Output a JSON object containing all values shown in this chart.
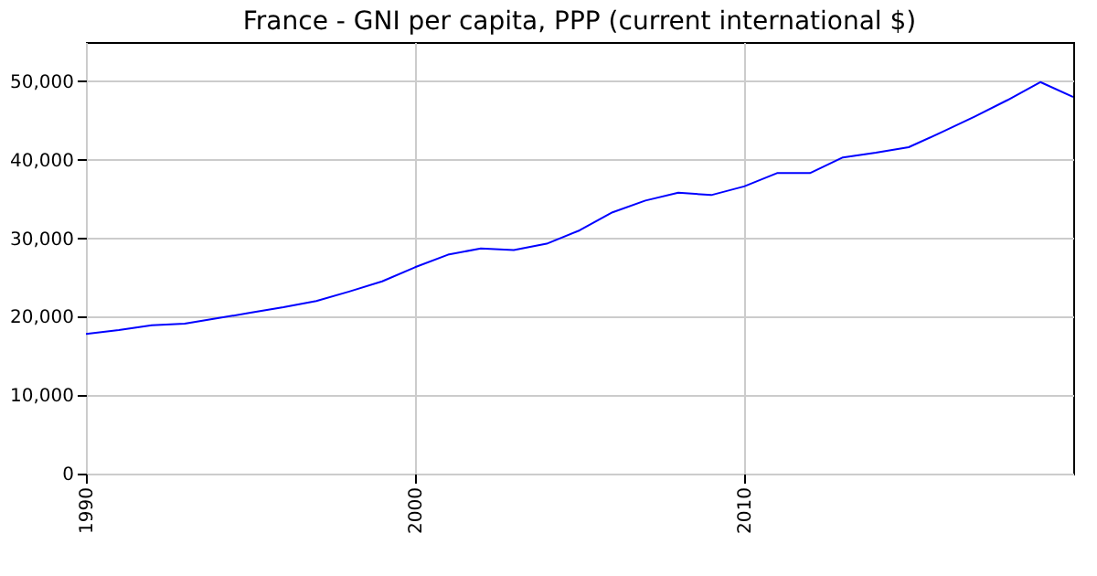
{
  "chart_data": {
    "type": "line",
    "title": "France - GNI per capita, PPP (current international $)",
    "x": [
      1990,
      1991,
      1992,
      1993,
      1994,
      1995,
      1996,
      1997,
      1998,
      1999,
      2000,
      2001,
      2002,
      2003,
      2004,
      2005,
      2006,
      2007,
      2008,
      2009,
      2010,
      2011,
      2012,
      2013,
      2014,
      2015,
      2016,
      2017,
      2018,
      2019,
      2020
    ],
    "series": [
      {
        "color": "#0000ff",
        "values": [
          17800,
          18300,
          18900,
          19100,
          19800,
          20500,
          21200,
          22000,
          23200,
          24500,
          26300,
          27900,
          28700,
          28500,
          29300,
          31000,
          33300,
          34800,
          35800,
          35500,
          36600,
          38300,
          38300,
          40300,
          40900,
          41600,
          43500,
          45500,
          47600,
          49900,
          48000
        ]
      }
    ],
    "xlim": [
      1990,
      2020
    ],
    "xticks": [
      1990,
      2000,
      2010
    ],
    "ylim": [
      0,
      55000
    ],
    "yticks": [
      {
        "value": 0,
        "label": "0"
      },
      {
        "value": 10000,
        "label": "10,000"
      },
      {
        "value": 20000,
        "label": "20,000"
      },
      {
        "value": 30000,
        "label": "30,000"
      },
      {
        "value": 40000,
        "label": "40,000"
      },
      {
        "value": 50000,
        "label": "50,000"
      }
    ],
    "grid": true,
    "legend": false,
    "marker": "none",
    "line_style": "solid"
  }
}
